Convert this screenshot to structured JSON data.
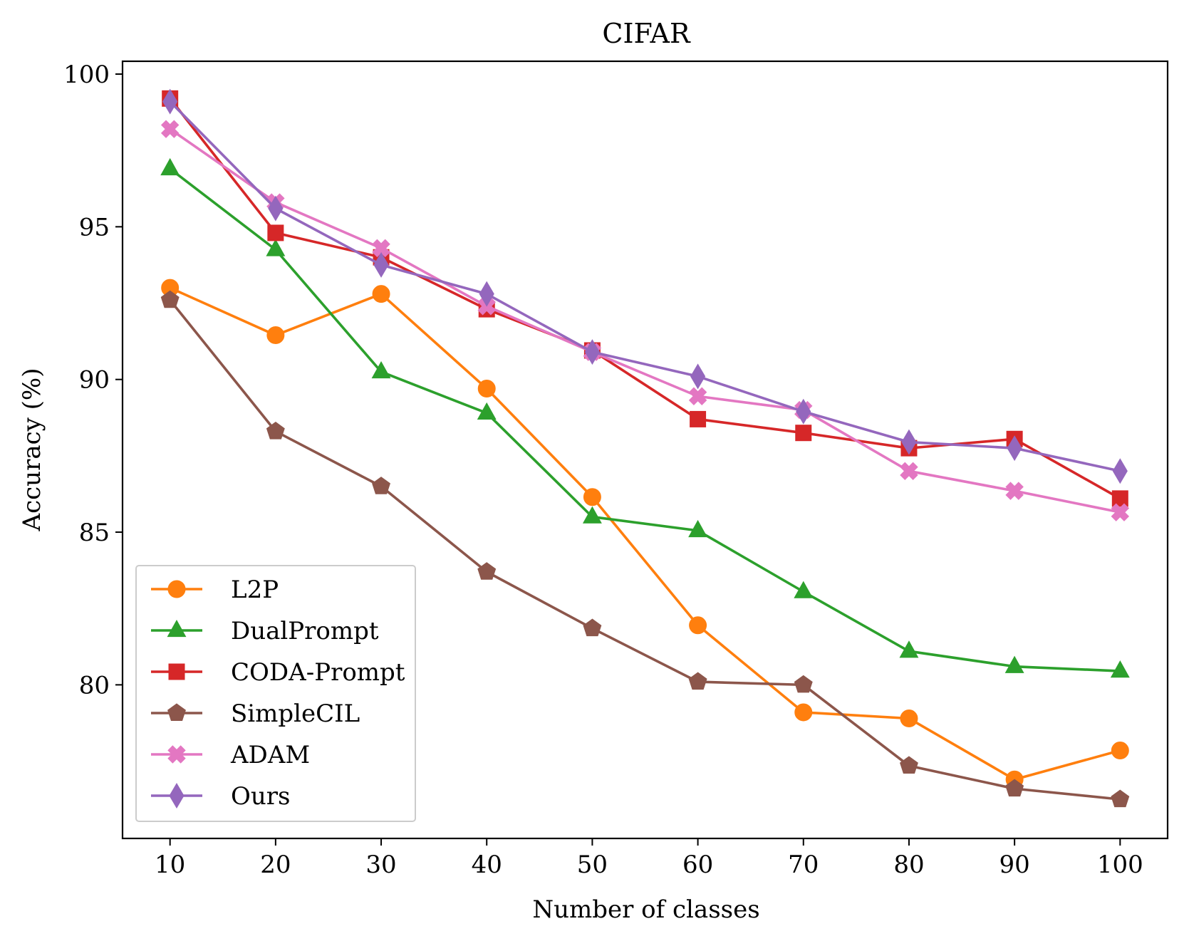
{
  "chart_data": {
    "type": "line",
    "title": "CIFAR",
    "xlabel": "Number of classes",
    "ylabel": "Accuracy (%)",
    "x": [
      10,
      20,
      30,
      40,
      50,
      60,
      70,
      80,
      90,
      100
    ],
    "xticks": [
      "10",
      "20",
      "30",
      "40",
      "50",
      "60",
      "70",
      "80",
      "90",
      "100"
    ],
    "yticks": [
      "80",
      "85",
      "90",
      "95",
      "100"
    ],
    "xlim": [
      5.5,
      104.5
    ],
    "ylim": [
      74.97,
      100.42
    ],
    "grid": false,
    "legend_position": "lower-left",
    "series": [
      {
        "name": "L2P",
        "color": "#ff7f0e",
        "marker": "circle",
        "values": [
          93.0,
          91.45,
          92.8,
          89.7,
          86.15,
          81.95,
          79.1,
          78.9,
          76.9,
          77.85
        ]
      },
      {
        "name": "DualPrompt",
        "color": "#2ca02c",
        "marker": "triangle",
        "values": [
          96.9,
          94.25,
          90.25,
          88.9,
          85.5,
          85.05,
          83.05,
          81.1,
          80.6,
          80.45
        ]
      },
      {
        "name": "CODA-Prompt",
        "color": "#d62728",
        "marker": "square",
        "values": [
          99.2,
          94.8,
          94.0,
          92.3,
          90.95,
          88.7,
          88.25,
          87.75,
          88.05,
          86.1
        ]
      },
      {
        "name": "SimpleCIL",
        "color": "#8c564b",
        "marker": "pentagon",
        "values": [
          92.6,
          88.3,
          86.5,
          83.7,
          81.85,
          80.1,
          80.0,
          77.35,
          76.6,
          76.25
        ]
      },
      {
        "name": "ADAM",
        "color": "#e377c2",
        "marker": "x",
        "values": [
          98.2,
          95.8,
          94.3,
          92.4,
          90.9,
          89.45,
          89.0,
          87.0,
          86.35,
          85.65
        ]
      },
      {
        "name": "Ours",
        "color": "#9467bd",
        "marker": "diamond",
        "values": [
          99.1,
          95.6,
          93.75,
          92.8,
          90.9,
          90.1,
          88.95,
          87.95,
          87.75,
          87.0
        ]
      }
    ]
  }
}
